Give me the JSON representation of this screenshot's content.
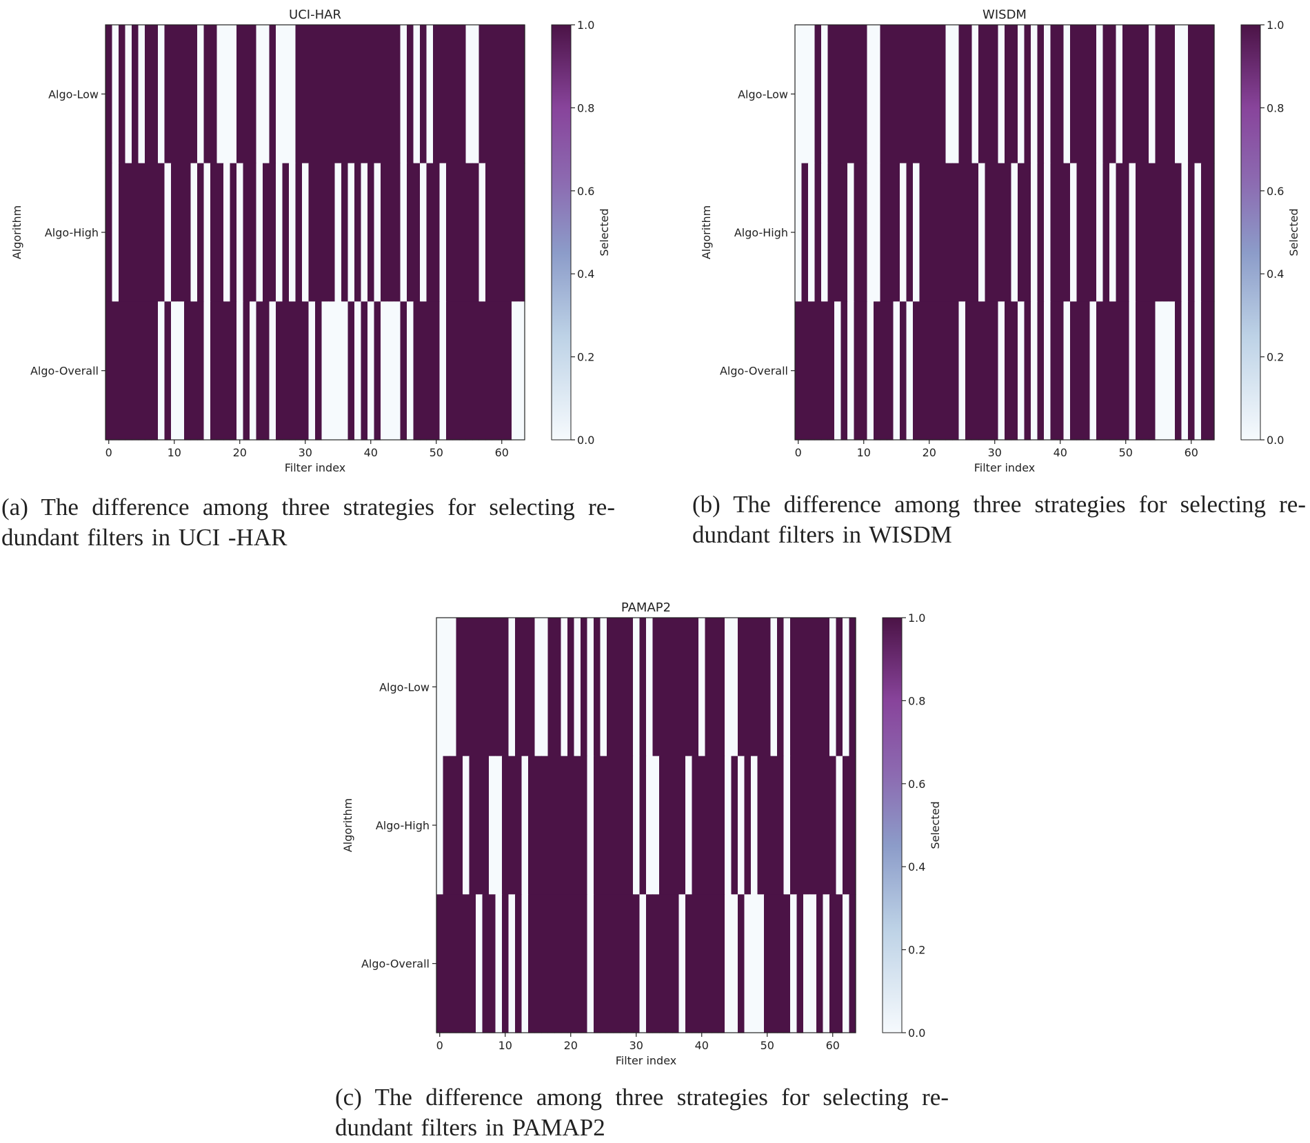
{
  "chart_data": [
    {
      "type": "heatmap",
      "title": "UCI-HAR",
      "xlabel": "Filter index",
      "ylabel": "Algorithm",
      "rows": [
        "Algo-Low",
        "Algo-High",
        "Algo-Overall"
      ],
      "x_ticks": [
        0,
        10,
        20,
        30,
        40,
        50,
        60
      ],
      "xlim": [
        0,
        64
      ],
      "colorbar": {
        "label": "Selected",
        "ticks": [
          "0.0",
          "0.2",
          "0.4",
          "0.6",
          "0.8",
          "1.0"
        ],
        "range": [
          0,
          1
        ]
      },
      "values": [
        [
          1,
          0,
          1,
          0,
          1,
          0,
          1,
          1,
          0,
          1,
          1,
          1,
          1,
          1,
          0,
          1,
          1,
          0,
          0,
          0,
          1,
          1,
          1,
          0,
          0,
          1,
          0,
          0,
          0,
          1,
          1,
          1,
          1,
          1,
          1,
          1,
          1,
          1,
          1,
          1,
          1,
          1,
          1,
          1,
          1,
          0,
          1,
          0,
          1,
          0,
          1,
          1,
          1,
          1,
          1,
          0,
          0,
          1,
          1,
          1,
          1,
          1,
          1,
          1
        ],
        [
          1,
          0,
          1,
          1,
          1,
          1,
          1,
          1,
          1,
          0,
          1,
          1,
          1,
          0,
          1,
          0,
          1,
          1,
          0,
          1,
          0,
          1,
          1,
          0,
          1,
          1,
          0,
          1,
          0,
          1,
          0,
          1,
          1,
          1,
          1,
          0,
          1,
          0,
          1,
          0,
          1,
          0,
          1,
          1,
          1,
          0,
          1,
          1,
          0,
          1,
          1,
          0,
          1,
          1,
          1,
          1,
          1,
          0,
          1,
          1,
          1,
          1,
          1,
          1
        ],
        [
          1,
          1,
          1,
          1,
          1,
          1,
          1,
          1,
          0,
          1,
          0,
          0,
          1,
          1,
          1,
          0,
          1,
          1,
          1,
          1,
          0,
          1,
          0,
          1,
          1,
          0,
          1,
          1,
          1,
          1,
          1,
          0,
          1,
          0,
          0,
          0,
          0,
          1,
          0,
          1,
          0,
          1,
          0,
          0,
          0,
          1,
          0,
          1,
          1,
          1,
          1,
          0,
          1,
          1,
          1,
          1,
          1,
          1,
          1,
          1,
          1,
          1,
          0,
          0
        ]
      ]
    },
    {
      "type": "heatmap",
      "title": "WISDM",
      "xlabel": "Filter index",
      "ylabel": "Algorithm",
      "rows": [
        "Algo-Low",
        "Algo-High",
        "Algo-Overall"
      ],
      "x_ticks": [
        0,
        10,
        20,
        30,
        40,
        50,
        60
      ],
      "xlim": [
        0,
        64
      ],
      "colorbar": {
        "label": "Selected",
        "ticks": [
          "0.0",
          "0.2",
          "0.4",
          "0.6",
          "0.8",
          "1.0"
        ],
        "range": [
          0,
          1
        ]
      },
      "values": [
        [
          0,
          0,
          0,
          1,
          0,
          1,
          1,
          1,
          1,
          1,
          1,
          0,
          0,
          1,
          1,
          1,
          1,
          1,
          1,
          1,
          1,
          1,
          1,
          0,
          0,
          1,
          1,
          0,
          1,
          1,
          1,
          0,
          1,
          1,
          0,
          1,
          0,
          1,
          0,
          1,
          1,
          0,
          1,
          1,
          1,
          1,
          0,
          1,
          1,
          0,
          1,
          1,
          1,
          1,
          0,
          1,
          1,
          1,
          0,
          0,
          1,
          1,
          1,
          1
        ],
        [
          0,
          1,
          0,
          1,
          0,
          1,
          1,
          1,
          0,
          1,
          1,
          0,
          0,
          1,
          1,
          1,
          0,
          1,
          0,
          1,
          1,
          1,
          1,
          1,
          1,
          1,
          1,
          1,
          0,
          1,
          1,
          1,
          1,
          0,
          1,
          1,
          0,
          1,
          0,
          1,
          1,
          1,
          0,
          1,
          1,
          1,
          0,
          1,
          0,
          1,
          1,
          0,
          1,
          1,
          1,
          1,
          1,
          1,
          1,
          0,
          1,
          0,
          1,
          1
        ],
        [
          1,
          1,
          1,
          1,
          1,
          1,
          0,
          1,
          0,
          1,
          1,
          0,
          1,
          1,
          1,
          0,
          1,
          0,
          1,
          1,
          1,
          1,
          1,
          1,
          1,
          0,
          1,
          1,
          1,
          1,
          1,
          0,
          1,
          1,
          0,
          1,
          0,
          1,
          0,
          1,
          1,
          0,
          1,
          1,
          1,
          0,
          1,
          1,
          1,
          1,
          1,
          0,
          1,
          1,
          1,
          0,
          0,
          0,
          1,
          0,
          1,
          0,
          1,
          1
        ]
      ]
    },
    {
      "type": "heatmap",
      "title": "PAMAP2",
      "xlabel": "Filter index",
      "ylabel": "Algorithm",
      "rows": [
        "Algo-Low",
        "Algo-High",
        "Algo-Overall"
      ],
      "x_ticks": [
        0,
        10,
        20,
        30,
        40,
        50,
        60
      ],
      "xlim": [
        0,
        64
      ],
      "colorbar": {
        "label": "Selected",
        "ticks": [
          "0.0",
          "0.2",
          "0.4",
          "0.6",
          "0.8",
          "1.0"
        ],
        "range": [
          0,
          1
        ]
      },
      "values": [
        [
          0,
          0,
          0,
          1,
          1,
          1,
          1,
          1,
          1,
          1,
          1,
          0,
          1,
          1,
          1,
          0,
          0,
          1,
          1,
          0,
          1,
          0,
          1,
          0,
          1,
          0,
          1,
          1,
          1,
          1,
          0,
          1,
          0,
          1,
          1,
          1,
          1,
          1,
          1,
          1,
          0,
          1,
          1,
          1,
          0,
          0,
          1,
          1,
          1,
          1,
          1,
          0,
          1,
          0,
          1,
          1,
          1,
          1,
          1,
          1,
          0,
          1,
          0,
          1
        ],
        [
          0,
          1,
          1,
          1,
          0,
          1,
          1,
          1,
          0,
          0,
          1,
          1,
          1,
          0,
          1,
          1,
          1,
          1,
          1,
          1,
          1,
          1,
          1,
          0,
          1,
          1,
          1,
          1,
          1,
          1,
          0,
          1,
          0,
          0,
          1,
          1,
          1,
          1,
          0,
          1,
          1,
          1,
          1,
          1,
          0,
          1,
          0,
          1,
          0,
          1,
          1,
          1,
          1,
          0,
          1,
          1,
          1,
          1,
          1,
          1,
          1,
          0,
          1,
          1
        ],
        [
          1,
          1,
          1,
          1,
          1,
          1,
          0,
          1,
          1,
          0,
          1,
          0,
          1,
          0,
          1,
          1,
          1,
          1,
          1,
          1,
          1,
          1,
          1,
          0,
          1,
          1,
          1,
          1,
          1,
          1,
          1,
          0,
          1,
          1,
          1,
          1,
          1,
          0,
          1,
          1,
          1,
          1,
          1,
          1,
          0,
          0,
          1,
          0,
          0,
          0,
          1,
          1,
          1,
          1,
          0,
          1,
          0,
          0,
          1,
          0,
          1,
          1,
          0,
          1
        ]
      ]
    }
  ],
  "captions": {
    "a": "(a) The difference among three strategies for selecting re-dundant filters in UCI -HAR",
    "b": "(b) The difference among three strategies for selecting re-dundant filters in WISDM",
    "c": "(c) The difference among three strategies for selecting re-dundant filters in PAMAP2"
  },
  "colors": {
    "selected": "#4b1346",
    "unselected": "#f6fafd",
    "mid_purple": "#88449b",
    "mid_blue": "#8c9cc9",
    "light_blue": "#bdd2e6"
  }
}
